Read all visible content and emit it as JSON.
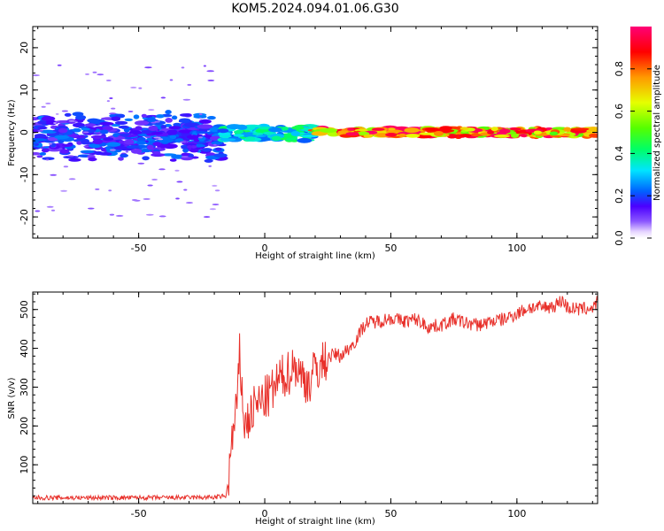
{
  "title": "KOM5.2024.094.01.06.G30",
  "chart_data": [
    {
      "type": "heatmap",
      "xlabel": "Height of straight line (km)",
      "ylabel": "Frequency (Hz)",
      "xlim": [
        -92,
        132
      ],
      "ylim": [
        -25,
        25
      ],
      "xticks": [
        -50,
        0,
        50,
        100
      ],
      "yticks": [
        -20,
        -10,
        0,
        10,
        20
      ],
      "colorbar": {
        "label": "Normalized spectral amplitude",
        "range": [
          0,
          1
        ],
        "ticks": [
          "0.0",
          "0.2",
          "0.4",
          "0.6",
          "0.8"
        ]
      },
      "description_regions": [
        {
          "x_range": [
            -92,
            -17
          ],
          "freq_range": [
            -7,
            5
          ],
          "amplitude": [
            0.1,
            0.25
          ]
        },
        {
          "x_range": [
            -17,
            20
          ],
          "freq_range": [
            -2,
            1.5
          ],
          "amplitude": [
            0.2,
            0.45
          ]
        },
        {
          "x_range": [
            20,
            132
          ],
          "freq_range": [
            -1,
            1
          ],
          "amplitude": [
            0.5,
            1.0
          ]
        }
      ]
    },
    {
      "type": "line",
      "xlabel": "Height of straight line (km)",
      "ylabel": "SNR (v/v)",
      "xlim": [
        -92,
        132
      ],
      "ylim": [
        0,
        545
      ],
      "xticks": [
        -50,
        0,
        50,
        100
      ],
      "yticks": [
        100,
        200,
        300,
        400,
        500
      ],
      "color": "#e8302a",
      "series": [
        {
          "x": [
            -92,
            -80,
            -60,
            -40,
            -20,
            -15,
            -13,
            -11,
            -10,
            -8,
            -6,
            -4,
            -2,
            0,
            2,
            4,
            6,
            8,
            10,
            12,
            14,
            16,
            18,
            20,
            22,
            24,
            26,
            28,
            30,
            35,
            40,
            45,
            50,
            55,
            60,
            65,
            70,
            75,
            80,
            85,
            90,
            95,
            100,
            105,
            110,
            115,
            118,
            120,
            125,
            130,
            132
          ],
          "y": [
            15,
            15,
            15,
            15,
            16,
            20,
            160,
            250,
            380,
            200,
            220,
            250,
            260,
            270,
            280,
            300,
            320,
            330,
            340,
            360,
            330,
            320,
            310,
            350,
            350,
            370,
            380,
            385,
            380,
            410,
            465,
            470,
            478,
            470,
            475,
            455,
            460,
            475,
            465,
            460,
            470,
            475,
            490,
            505,
            505,
            510,
            525,
            505,
            500,
            505,
            520
          ]
        }
      ]
    }
  ]
}
